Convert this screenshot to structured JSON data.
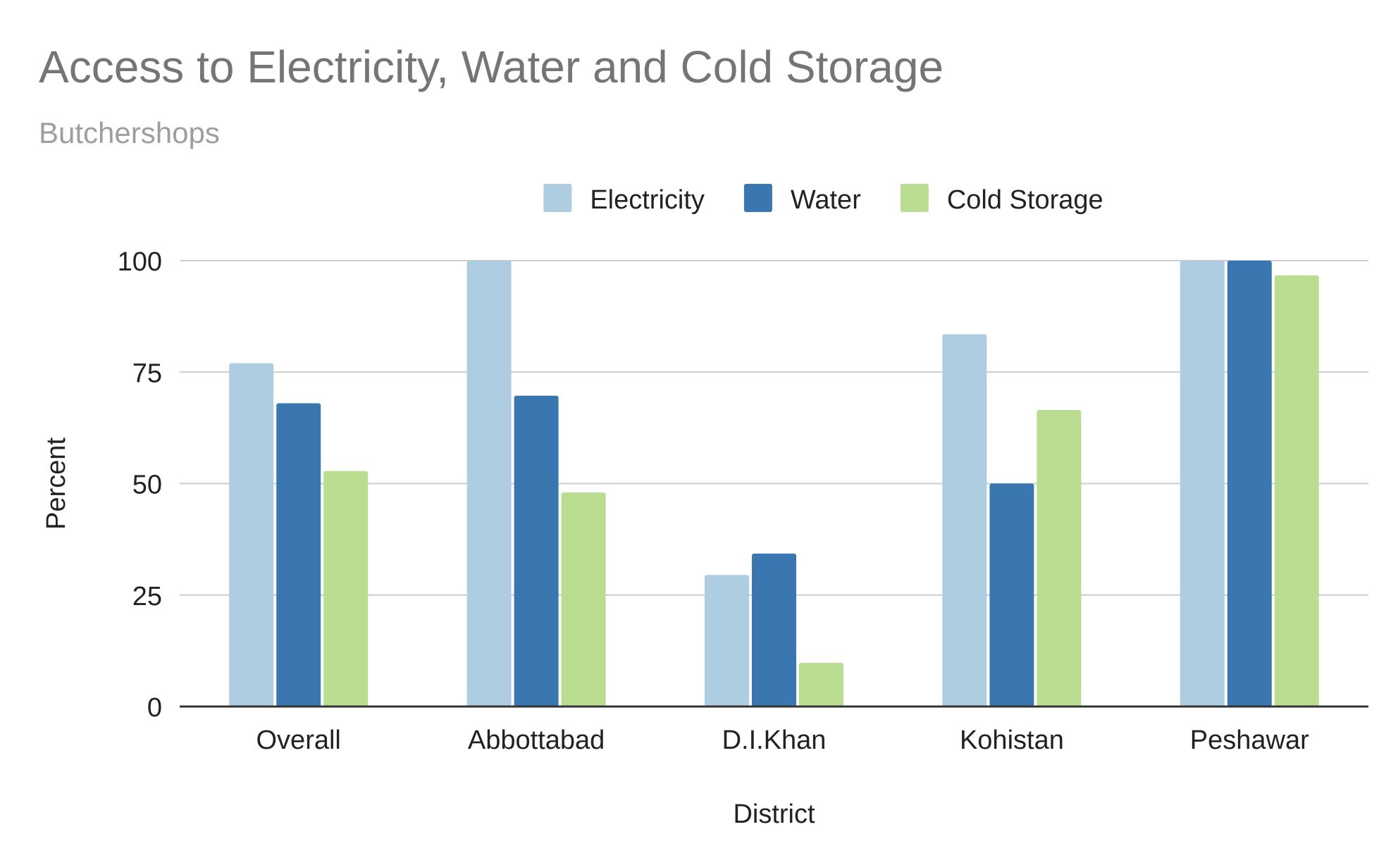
{
  "chart_data": {
    "type": "bar",
    "title": "Access to Electricity, Water and Cold Storage",
    "subtitle": "Butchershops",
    "xlabel": "District",
    "ylabel": "Percent",
    "ylim": [
      0,
      100
    ],
    "yticks": [
      0,
      25,
      50,
      75,
      100
    ],
    "grid": true,
    "legend_position": "top",
    "categories": [
      "Overall",
      "Abbottabad",
      "D.I.Khan",
      "Kohistan",
      "Peshawar"
    ],
    "series": [
      {
        "name": "Electricity",
        "color": "#aecde1",
        "values": [
          77,
          100,
          29.5,
          83.5,
          100
        ]
      },
      {
        "name": "Water",
        "color": "#3a77b0",
        "values": [
          68,
          69.7,
          34.3,
          50,
          100
        ]
      },
      {
        "name": "Cold Storage",
        "color": "#bbdd92",
        "values": [
          52.8,
          48,
          9.8,
          66.5,
          96.7
        ]
      }
    ]
  }
}
